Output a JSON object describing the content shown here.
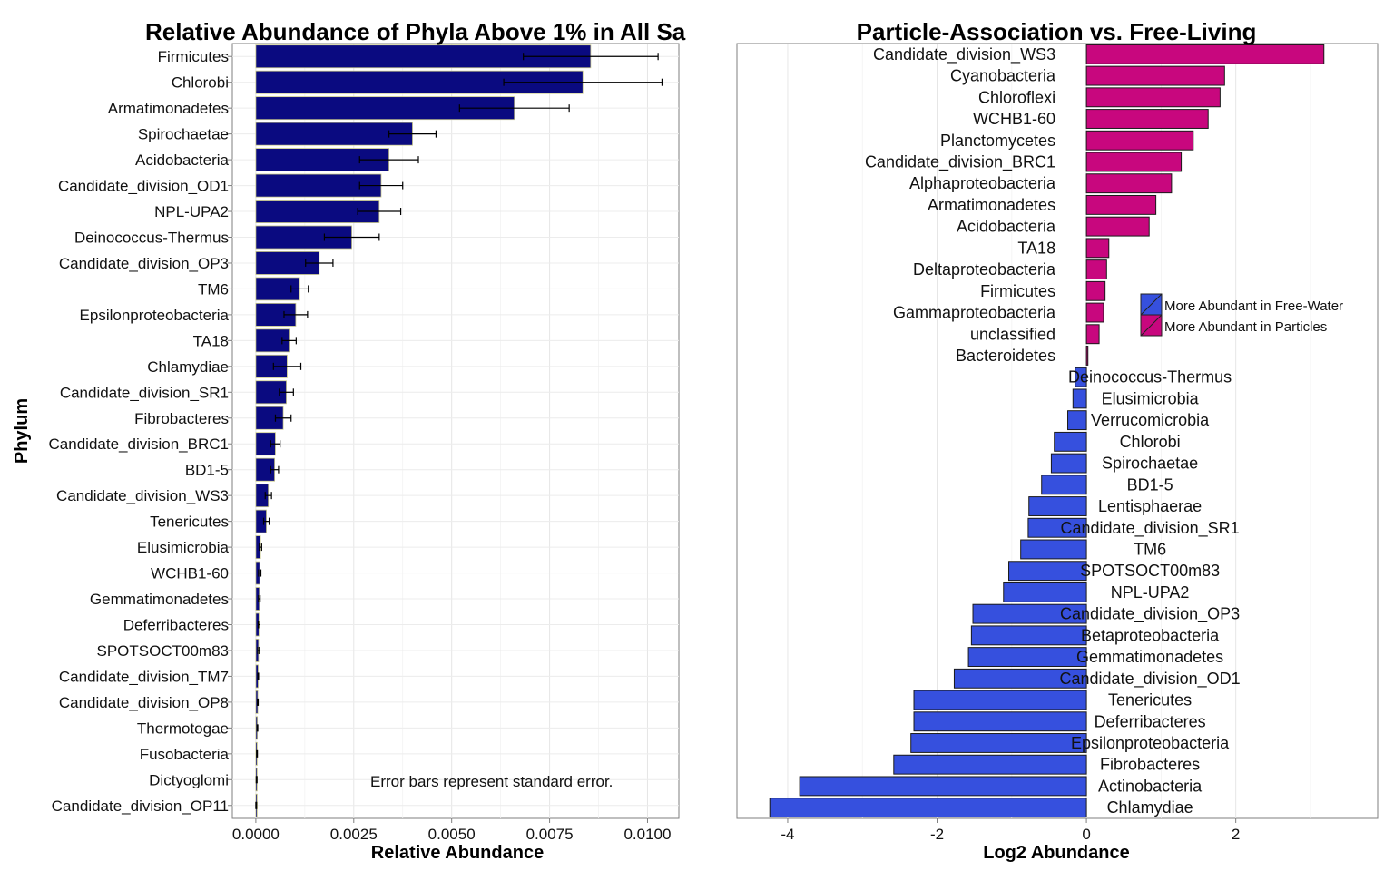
{
  "chart_data": [
    {
      "type": "bar",
      "orientation": "horizontal",
      "title": "Relative Abundance of Phyla Above 1% in All Sa",
      "xlabel": "Relative Abundance",
      "ylabel": "Phylum",
      "xlim": [
        -0.0006,
        0.0108
      ],
      "xticks": [
        "0.0000",
        "0.0025",
        "0.0050",
        "0.0075",
        "0.0100"
      ],
      "xtick_values": [
        0,
        0.0025,
        0.005,
        0.0075,
        0.01
      ],
      "grid": true,
      "annotation": "Error bars represent standard error.",
      "bar_color": "#0a0a80",
      "categories": [
        "Firmicutes",
        "Chlorobi",
        "Armatimonadetes",
        "Spirochaetae",
        "Acidobacteria",
        "Candidate_division_OD1",
        "NPL-UPA2",
        "Deinococcus-Thermus",
        "Candidate_division_OP3",
        "TM6",
        "Epsilonproteobacteria",
        "TA18",
        "Chlamydiae",
        "Candidate_division_SR1",
        "Fibrobacteres",
        "Candidate_division_BRC1",
        "BD1-5",
        "Candidate_division_WS3",
        "Tenericutes",
        "Elusimicrobia",
        "WCHB1-60",
        "Gemmatimonadetes",
        "Deferribacteres",
        "SPOTSOCT00m83",
        "Candidate_division_TM7",
        "Candidate_division_OP8",
        "Thermotogae",
        "Fusobacteria",
        "Dictyoglomi",
        "Candidate_division_OP11"
      ],
      "values": [
        0.00855,
        0.00835,
        0.0066,
        0.004,
        0.0034,
        0.0032,
        0.00315,
        0.00245,
        0.00162,
        0.00112,
        0.00102,
        0.00085,
        0.0008,
        0.00078,
        0.0007,
        0.0005,
        0.00048,
        0.00032,
        0.00027,
        0.00012,
        0.0001,
        9e-05,
        8e-05,
        7e-05,
        6e-05,
        5e-05,
        4e-05,
        3e-05,
        2e-05,
        1e-05
      ],
      "errors": [
        0.00172,
        0.00202,
        0.0014,
        0.0006,
        0.00075,
        0.00055,
        0.00055,
        0.0007,
        0.00035,
        0.00022,
        0.0003,
        0.00018,
        0.00035,
        0.00018,
        0.0002,
        0.00012,
        0.0001,
        8e-05,
        7e-05,
        3e-05,
        3e-05,
        2e-05,
        2e-05,
        2e-05,
        1e-05,
        1e-05,
        1e-05,
        1e-05,
        1e-05,
        1e-05
      ]
    },
    {
      "type": "bar",
      "orientation": "horizontal",
      "title": "Particle-Association vs. Free-Living",
      "xlabel": "Log2 Abundance",
      "ylabel": "",
      "xlim": [
        -4.68,
        3.9
      ],
      "xticks": [
        "-4",
        "-2",
        "0",
        "2"
      ],
      "xtick_values": [
        -4,
        -2,
        0,
        2
      ],
      "grid": true,
      "legend_position": "inside-right",
      "legend": [
        {
          "label": "More Abundant in Free-Water",
          "color": "#3650de"
        },
        {
          "label": "More Abundant in Particles",
          "color": "#c8077e"
        }
      ],
      "categories": [
        "Candidate_division_WS3",
        "Cyanobacteria",
        "Chloroflexi",
        "WCHB1-60",
        "Planctomycetes",
        "Candidate_division_BRC1",
        "Alphaproteobacteria",
        "Armatimonadetes",
        "Acidobacteria",
        "TA18",
        "Deltaproteobacteria",
        "Firmicutes",
        "Gammaproteobacteria",
        "unclassified",
        "Bacteroidetes",
        "Deinococcus-Thermus",
        "Elusimicrobia",
        "Verrucomicrobia",
        "Chlorobi",
        "Spirochaetae",
        "BD1-5",
        "Lentisphaerae",
        "Candidate_division_SR1",
        "TM6",
        "SPOTSOCT00m83",
        "NPL-UPA2",
        "Candidate_division_OP3",
        "Betaproteobacteria",
        "Gemmatimonadetes",
        "Candidate_division_OD1",
        "Tenericutes",
        "Deferribacteres",
        "Epsilonproteobacteria",
        "Fibrobacteres",
        "Actinobacteria",
        "Chlamydiae"
      ],
      "values": [
        3.18,
        1.85,
        1.79,
        1.63,
        1.43,
        1.27,
        1.14,
        0.93,
        0.84,
        0.3,
        0.27,
        0.25,
        0.23,
        0.17,
        0.02,
        -0.15,
        -0.18,
        -0.25,
        -0.43,
        -0.47,
        -0.6,
        -0.77,
        -0.78,
        -0.88,
        -1.04,
        -1.11,
        -1.52,
        -1.54,
        -1.58,
        -1.77,
        -2.31,
        -2.31,
        -2.35,
        -2.58,
        -3.84,
        -4.24
      ]
    }
  ]
}
